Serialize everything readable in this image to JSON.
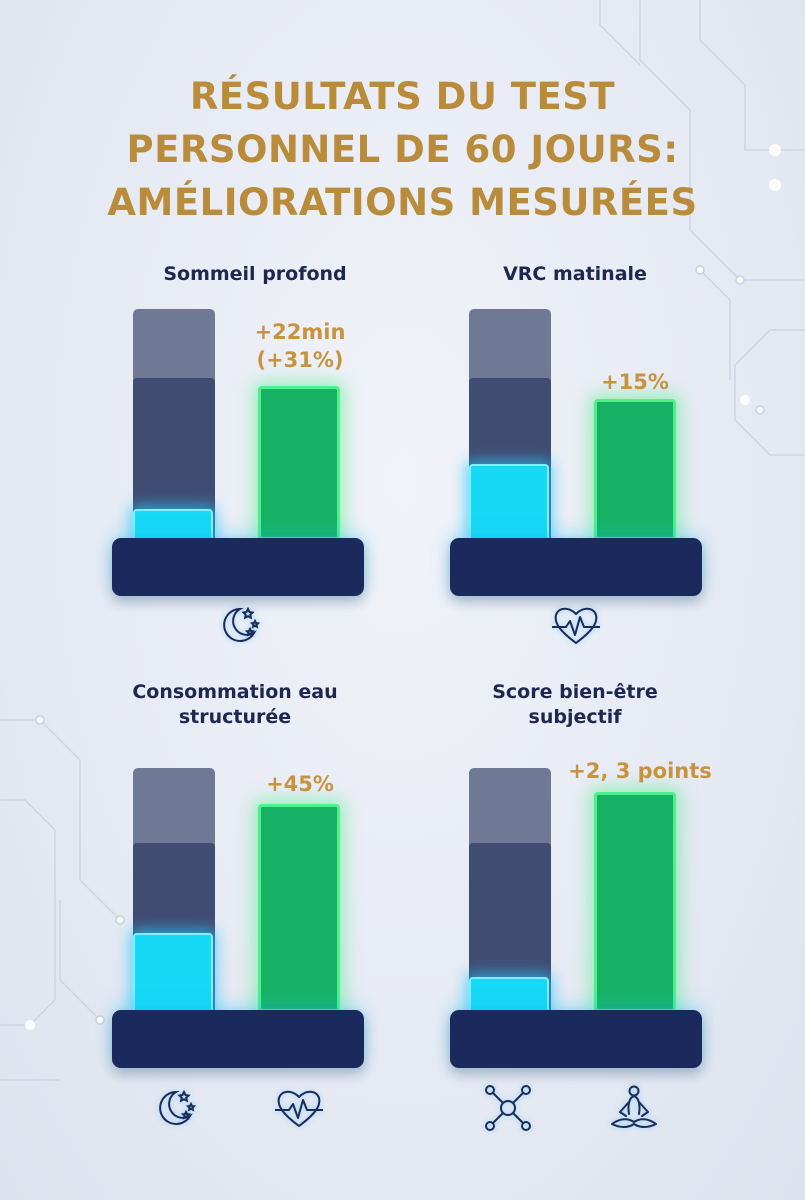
{
  "title": {
    "line1": "RÉSULTATS DU TEST",
    "line2": "PERSONNEL DE 60 JOURS:",
    "line3": "AMÉLIORATIONS MESURÉES"
  },
  "chart_data": [
    {
      "type": "bar",
      "title": "Sommeil profond",
      "categories": [
        "",
        ""
      ],
      "annotation": "+22min\n(+31%)",
      "annotation_lines": [
        "+22min",
        "(+31%)"
      ],
      "values_relative": [
        0.15,
        0.75
      ],
      "colors": [
        "#16d9f6",
        "#17b166"
      ],
      "icons": [
        "moon-stars-icon"
      ]
    },
    {
      "type": "bar",
      "title": "VRC matinale",
      "categories": [
        "",
        ""
      ],
      "annotation": "+15%",
      "annotation_lines": [
        "+15%"
      ],
      "values_relative": [
        0.37,
        0.69
      ],
      "colors": [
        "#16d9f6",
        "#17b166"
      ],
      "icons": [
        "heart-pulse-icon"
      ]
    },
    {
      "type": "bar",
      "title": "Consommation eau structurée",
      "categories": [
        "",
        ""
      ],
      "annotation": "+45%",
      "annotation_lines": [
        "+45%"
      ],
      "values_relative": [
        0.38,
        1.0
      ],
      "colors": [
        "#16d9f6",
        "#17b166"
      ],
      "icons": [
        "moon-stars-icon",
        "heart-pulse-icon"
      ]
    },
    {
      "type": "bar",
      "title": "Score bien-être subjectif",
      "categories": [
        "",
        ""
      ],
      "annotation": "+2, 3 points",
      "annotation_lines": [
        "+2, 3 points"
      ],
      "values_relative": [
        0.16,
        1.0
      ],
      "colors": [
        "#16d9f6",
        "#17b166"
      ],
      "icons": [
        "molecule-icon",
        "meditation-icon"
      ]
    }
  ],
  "panels": [
    {
      "title_lines": [
        "Sommeil profond"
      ]
    },
    {
      "title_lines": [
        "VRC matinale"
      ]
    },
    {
      "title_lines": [
        "Consommation eau",
        "structurée"
      ]
    },
    {
      "title_lines": [
        "Score bien-être",
        "subjectif"
      ]
    }
  ],
  "colors": {
    "title": "#b98c3c",
    "label": "#c7933f",
    "heading": "#1d2750",
    "before_bar": "#16d9f6",
    "after_bar": "#17b166",
    "base": "#1b2a5c"
  }
}
